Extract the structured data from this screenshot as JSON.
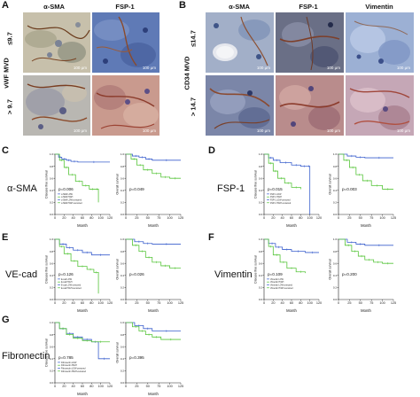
{
  "panels": {
    "A": {
      "letter": "A",
      "columns": [
        "α-SMA",
        "FSP-1"
      ],
      "group_label": "vWF MVD",
      "rows": [
        "≤9.7",
        "> 9.7"
      ],
      "scalebars": [
        "100 μm",
        "100 μm",
        "100 μm",
        "100 μm"
      ]
    },
    "B": {
      "letter": "B",
      "columns": [
        "α-SMA",
        "FSP-1",
        "Vimentin"
      ],
      "group_label": "CD34 MVD",
      "rows": [
        "≤14.7",
        "> 14.7"
      ],
      "scalebars": [
        "100 μm",
        "100 μm",
        "100 μm",
        "100 μm",
        "100 μm",
        "100 μm"
      ]
    },
    "C": {
      "letter": "C",
      "marker": "α-SMA",
      "dfs": {
        "ylabel": "Disease free survival",
        "xlabel": "Month",
        "p": "p=0.006",
        "legend": [
          "α-SMA LOW",
          "α-SMA HIGH",
          "α-SMA LOW-censored",
          "α-SMA HIGH-censored"
        ]
      },
      "os": {
        "ylabel": "Overall survival",
        "xlabel": "Month",
        "p": "p=0.049"
      }
    },
    "D": {
      "letter": "D",
      "marker": "FSP-1",
      "dfs": {
        "ylabel": "Disease free survival",
        "xlabel": "Month",
        "p": "p=0.015",
        "legend": [
          "FSP-1 LOW",
          "FSP-1 HIGH",
          "FSP-1 LOW-censored",
          "FSP-1 HIGH-censored"
        ]
      },
      "os": {
        "ylabel": "Overall survival",
        "xlabel": "Month",
        "p": "p=0.003"
      }
    },
    "E": {
      "letter": "E",
      "marker": "VE-cad",
      "dfs": {
        "ylabel": "Disease free survival",
        "xlabel": "Month",
        "p": "p=0.126",
        "legend": [
          "E-cad LOW",
          "E-cad HIGH",
          "E-cad LOW-censored",
          "E-cad HIGH-censored"
        ]
      },
      "os": {
        "ylabel": "Overall survival",
        "xlabel": "Month",
        "p": "p=0.026"
      }
    },
    "F": {
      "letter": "F",
      "marker": "Vimentin",
      "dfs": {
        "ylabel": "Disease free survival",
        "xlabel": "Month",
        "p": "p=0.109",
        "legend": [
          "Vimentin LOW",
          "Vimentin HIGH",
          "Vimentin LOW-censored",
          "Vimentin HIGH-censored"
        ]
      },
      "os": {
        "ylabel": "Overall survival",
        "xlabel": "Month",
        "p": "p=0.200"
      }
    },
    "G": {
      "letter": "G",
      "marker": "Fibronectin",
      "dfs": {
        "ylabel": "Disease free survival",
        "xlabel": "Month",
        "p": "p=0.785",
        "legend": [
          "Fibronectin LOW",
          "Fibronectin HIGH",
          "Fibronectin LOW-censored",
          "Fibronectin HIGH-censored"
        ]
      },
      "os": {
        "ylabel": "Overall survival",
        "xlabel": "Month",
        "p": "p=0.395"
      }
    }
  },
  "colors": {
    "low": "#3a5fcd",
    "high": "#57c53a",
    "axis": "#222222"
  },
  "chart_data": [
    {
      "type": "line",
      "id": "C-dfs",
      "xlim": [
        0,
        120
      ],
      "ylim": [
        0,
        1
      ],
      "xticks": [
        "0",
        "20",
        "40",
        "60",
        "80",
        "100",
        "120"
      ],
      "yticks": [
        "0.0",
        "0.2",
        "0.4",
        "0.6",
        "0.8",
        "1.0"
      ],
      "series": [
        {
          "name": "α-SMA LOW",
          "x": [
            0,
            8,
            15,
            25,
            35,
            50,
            120
          ],
          "y": [
            1.0,
            0.95,
            0.92,
            0.9,
            0.88,
            0.87,
            0.87
          ]
        },
        {
          "name": "α-SMA HIGH",
          "x": [
            0,
            10,
            20,
            30,
            45,
            60,
            75,
            90,
            95
          ],
          "y": [
            1.0,
            0.9,
            0.78,
            0.66,
            0.55,
            0.48,
            0.42,
            0.42,
            0.2
          ]
        }
      ]
    },
    {
      "type": "line",
      "id": "C-os",
      "xlim": [
        0,
        125
      ],
      "ylim": [
        0,
        1
      ],
      "xticks": [
        "0",
        "25",
        "50",
        "75",
        "100",
        "125"
      ],
      "yticks": [
        "0.0",
        "0.2",
        "0.4",
        "0.6",
        "0.8",
        "1.0"
      ],
      "series": [
        {
          "name": "α-SMA LOW",
          "x": [
            0,
            15,
            30,
            45,
            60,
            125
          ],
          "y": [
            1.0,
            0.97,
            0.95,
            0.92,
            0.9,
            0.9
          ]
        },
        {
          "name": "α-SMA HIGH",
          "x": [
            0,
            12,
            25,
            40,
            60,
            80,
            100,
            125
          ],
          "y": [
            1.0,
            0.92,
            0.82,
            0.74,
            0.68,
            0.62,
            0.6,
            0.6
          ]
        }
      ]
    },
    {
      "type": "line",
      "id": "D-dfs",
      "xlim": [
        0,
        120
      ],
      "ylim": [
        0,
        1
      ],
      "xticks": [
        "0",
        "20",
        "40",
        "60",
        "80",
        "100",
        "120"
      ],
      "yticks": [
        "0.0",
        "0.2",
        "0.4",
        "0.6",
        "0.8",
        "1.0"
      ],
      "series": [
        {
          "name": "FSP-1 LOW",
          "x": [
            0,
            10,
            20,
            35,
            60,
            80,
            95,
            100
          ],
          "y": [
            1.0,
            0.94,
            0.9,
            0.86,
            0.82,
            0.8,
            0.8,
            0.0
          ]
        },
        {
          "name": "FSP-1 HIGH",
          "x": [
            0,
            10,
            20,
            30,
            45,
            60,
            80
          ],
          "y": [
            1.0,
            0.85,
            0.72,
            0.6,
            0.52,
            0.45,
            0.42
          ]
        }
      ]
    },
    {
      "type": "line",
      "id": "D-os",
      "xlim": [
        0,
        125
      ],
      "ylim": [
        0,
        1
      ],
      "xticks": [
        "0",
        "25",
        "50",
        "75",
        "100",
        "125"
      ],
      "yticks": [
        "0.0",
        "0.2",
        "0.4",
        "0.6",
        "0.8",
        "1.0"
      ],
      "series": [
        {
          "name": "FSP-1 LOW",
          "x": [
            0,
            20,
            40,
            60,
            125
          ],
          "y": [
            1.0,
            0.97,
            0.95,
            0.94,
            0.94
          ]
        },
        {
          "name": "FSP-1 HIGH",
          "x": [
            0,
            12,
            25,
            40,
            55,
            75,
            100,
            125
          ],
          "y": [
            1.0,
            0.9,
            0.78,
            0.66,
            0.56,
            0.48,
            0.42,
            0.42
          ]
        }
      ]
    },
    {
      "type": "line",
      "id": "E-dfs",
      "xlim": [
        0,
        120
      ],
      "ylim": [
        0,
        1
      ],
      "xticks": [
        "0",
        "20",
        "40",
        "60",
        "80",
        "100",
        "120"
      ],
      "yticks": [
        "0.0",
        "0.2",
        "0.4",
        "0.6",
        "0.8",
        "1.0"
      ],
      "series": [
        {
          "name": "E-cad LOW",
          "x": [
            0,
            10,
            25,
            40,
            60,
            80,
            120
          ],
          "y": [
            1.0,
            0.92,
            0.86,
            0.82,
            0.78,
            0.74,
            0.74
          ]
        },
        {
          "name": "E-cad HIGH",
          "x": [
            0,
            10,
            20,
            35,
            50,
            70,
            85,
            95
          ],
          "y": [
            1.0,
            0.88,
            0.76,
            0.64,
            0.55,
            0.5,
            0.45,
            0.1
          ]
        }
      ]
    },
    {
      "type": "line",
      "id": "E-os",
      "xlim": [
        0,
        125
      ],
      "ylim": [
        0,
        1
      ],
      "xticks": [
        "0",
        "25",
        "50",
        "75",
        "100",
        "125"
      ],
      "yticks": [
        "0.0",
        "0.2",
        "0.4",
        "0.6",
        "0.8",
        "1.0"
      ],
      "series": [
        {
          "name": "E-cad LOW",
          "x": [
            0,
            20,
            40,
            60,
            125
          ],
          "y": [
            1.0,
            0.96,
            0.93,
            0.92,
            0.92
          ]
        },
        {
          "name": "E-cad HIGH",
          "x": [
            0,
            15,
            30,
            45,
            60,
            80,
            100,
            125
          ],
          "y": [
            1.0,
            0.9,
            0.8,
            0.7,
            0.62,
            0.56,
            0.52,
            0.52
          ]
        }
      ]
    },
    {
      "type": "line",
      "id": "F-dfs",
      "xlim": [
        0,
        120
      ],
      "ylim": [
        0,
        1
      ],
      "xticks": [
        "0",
        "20",
        "40",
        "60",
        "80",
        "100",
        "120"
      ],
      "yticks": [
        "0.0",
        "0.2",
        "0.4",
        "0.6",
        "0.8",
        "1.0"
      ],
      "series": [
        {
          "name": "Vimentin LOW",
          "x": [
            0,
            10,
            25,
            40,
            60,
            90,
            120
          ],
          "y": [
            1.0,
            0.93,
            0.87,
            0.83,
            0.8,
            0.78,
            0.78
          ]
        },
        {
          "name": "Vimentin HIGH",
          "x": [
            0,
            10,
            20,
            35,
            50,
            70,
            90
          ],
          "y": [
            1.0,
            0.88,
            0.74,
            0.62,
            0.52,
            0.46,
            0.44
          ]
        }
      ]
    },
    {
      "type": "line",
      "id": "F-os",
      "xlim": [
        0,
        125
      ],
      "ylim": [
        0,
        1
      ],
      "xticks": [
        "0",
        "25",
        "50",
        "75",
        "100",
        "125"
      ],
      "yticks": [
        "0.0",
        "0.2",
        "0.4",
        "0.6",
        "0.8",
        "1.0"
      ],
      "series": [
        {
          "name": "Vimentin LOW",
          "x": [
            0,
            20,
            40,
            60,
            125
          ],
          "y": [
            1.0,
            0.95,
            0.92,
            0.9,
            0.9
          ]
        },
        {
          "name": "Vimentin HIGH",
          "x": [
            0,
            15,
            30,
            45,
            60,
            80,
            100,
            125
          ],
          "y": [
            1.0,
            0.9,
            0.8,
            0.72,
            0.66,
            0.62,
            0.6,
            0.6
          ]
        }
      ]
    },
    {
      "type": "line",
      "id": "G-dfs",
      "xlim": [
        0,
        120
      ],
      "ylim": [
        0,
        1
      ],
      "xticks": [
        "0",
        "20",
        "40",
        "60",
        "80",
        "100",
        "120"
      ],
      "yticks": [
        "0.0",
        "0.2",
        "0.4",
        "0.6",
        "0.8",
        "1.0"
      ],
      "series": [
        {
          "name": "Fibronectin LOW",
          "x": [
            0,
            10,
            25,
            40,
            60,
            80,
            95,
            120
          ],
          "y": [
            1.0,
            0.9,
            0.82,
            0.76,
            0.72,
            0.68,
            0.4,
            0.4
          ]
        },
        {
          "name": "Fibronectin HIGH",
          "x": [
            0,
            10,
            25,
            40,
            60,
            80,
            120
          ],
          "y": [
            1.0,
            0.9,
            0.8,
            0.74,
            0.7,
            0.68,
            0.68
          ]
        }
      ]
    },
    {
      "type": "line",
      "id": "G-os",
      "xlim": [
        0,
        125
      ],
      "ylim": [
        0,
        1
      ],
      "xticks": [
        "0",
        "25",
        "50",
        "75",
        "100",
        "125"
      ],
      "yticks": [
        "0.0",
        "0.2",
        "0.4",
        "0.6",
        "0.8",
        "1.0"
      ],
      "series": [
        {
          "name": "Fibronectin LOW",
          "x": [
            0,
            20,
            40,
            60,
            125
          ],
          "y": [
            1.0,
            0.95,
            0.9,
            0.86,
            0.86
          ]
        },
        {
          "name": "Fibronectin HIGH",
          "x": [
            0,
            15,
            30,
            45,
            60,
            80,
            125
          ],
          "y": [
            1.0,
            0.93,
            0.86,
            0.8,
            0.76,
            0.72,
            0.72
          ]
        }
      ]
    }
  ]
}
